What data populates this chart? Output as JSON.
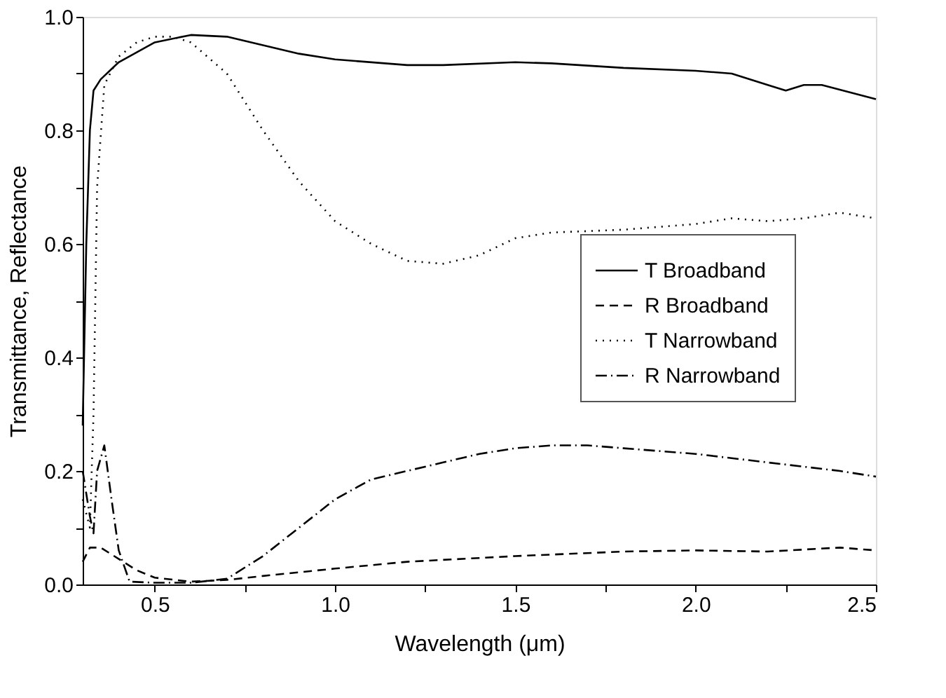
{
  "chart_data": {
    "type": "line",
    "xlabel": "Wavelength (μm)",
    "ylabel": "Transmittance, Reflectance",
    "xlim": [
      0.3,
      2.5
    ],
    "ylim": [
      0,
      1.0
    ],
    "xticks": [
      {
        "value": 0.5,
        "label": "0.5"
      },
      {
        "value": 0.75,
        "label": null
      },
      {
        "value": 1.0,
        "label": "1.0"
      },
      {
        "value": 1.25,
        "label": null
      },
      {
        "value": 1.5,
        "label": "1.5"
      },
      {
        "value": 1.75,
        "label": null
      },
      {
        "value": 2.0,
        "label": "2.0"
      },
      {
        "value": 2.25,
        "label": null
      },
      {
        "value": 2.5,
        "label": "2.5"
      }
    ],
    "yticks": [
      {
        "value": 0,
        "label": "0.0"
      },
      {
        "value": 0.1,
        "label": null
      },
      {
        "value": 0.2,
        "label": "0.2"
      },
      {
        "value": 0.3,
        "label": null
      },
      {
        "value": 0.4,
        "label": "0.4"
      },
      {
        "value": 0.5,
        "label": null
      },
      {
        "value": 0.6,
        "label": "0.6"
      },
      {
        "value": 0.7,
        "label": null
      },
      {
        "value": 0.8,
        "label": "0.8"
      },
      {
        "value": 0.9,
        "label": null
      },
      {
        "value": 1.0,
        "label": "1.0"
      }
    ],
    "grid": false,
    "legend": "right",
    "marker": "none",
    "series": [
      {
        "name": "T Broadband",
        "color": "#000000",
        "line_style": "solid",
        "x": [
          0.3,
          0.31,
          0.32,
          0.33,
          0.35,
          0.4,
          0.5,
          0.6,
          0.7,
          0.8,
          0.9,
          1.0,
          1.2,
          1.3,
          1.5,
          1.6,
          1.8,
          2.0,
          2.1,
          2.2,
          2.25,
          2.3,
          2.35,
          2.5
        ],
        "values": [
          0.28,
          0.6,
          0.8,
          0.87,
          0.89,
          0.92,
          0.955,
          0.968,
          0.965,
          0.95,
          0.935,
          0.925,
          0.915,
          0.915,
          0.92,
          0.918,
          0.91,
          0.905,
          0.9,
          0.88,
          0.87,
          0.88,
          0.88,
          0.855
        ]
      },
      {
        "name": "R Broadband",
        "color": "#000000",
        "line_style": "dashed",
        "x": [
          0.3,
          0.32,
          0.35,
          0.4,
          0.45,
          0.5,
          0.6,
          0.7,
          0.8,
          1.0,
          1.2,
          1.5,
          1.8,
          2.0,
          2.2,
          2.4,
          2.5
        ],
        "values": [
          0.04,
          0.065,
          0.065,
          0.045,
          0.025,
          0.012,
          0.005,
          0.008,
          0.015,
          0.028,
          0.04,
          0.05,
          0.058,
          0.06,
          0.058,
          0.065,
          0.06
        ]
      },
      {
        "name": "T Narrowband",
        "color": "#000000",
        "line_style": "dotted",
        "x": [
          0.3,
          0.32,
          0.33,
          0.34,
          0.36,
          0.4,
          0.45,
          0.5,
          0.55,
          0.6,
          0.7,
          0.8,
          0.9,
          1.0,
          1.1,
          1.2,
          1.3,
          1.4,
          1.5,
          1.6,
          1.8,
          2.0,
          2.1,
          2.2,
          2.3,
          2.4,
          2.5
        ],
        "values": [
          0.15,
          0.1,
          0.3,
          0.7,
          0.88,
          0.93,
          0.955,
          0.965,
          0.965,
          0.955,
          0.9,
          0.8,
          0.71,
          0.64,
          0.6,
          0.57,
          0.565,
          0.58,
          0.61,
          0.62,
          0.625,
          0.635,
          0.645,
          0.64,
          0.645,
          0.655,
          0.645
        ]
      },
      {
        "name": "R Narrowband",
        "color": "#000000",
        "line_style": "dashdot",
        "x": [
          0.3,
          0.32,
          0.33,
          0.34,
          0.36,
          0.38,
          0.4,
          0.43,
          0.5,
          0.6,
          0.7,
          0.8,
          0.9,
          1.0,
          1.1,
          1.2,
          1.3,
          1.4,
          1.5,
          1.6,
          1.7,
          1.8,
          2.0,
          2.2,
          2.4,
          2.5
        ],
        "values": [
          0.2,
          0.12,
          0.09,
          0.2,
          0.245,
          0.15,
          0.06,
          0.005,
          0.003,
          0.003,
          0.01,
          0.05,
          0.1,
          0.15,
          0.185,
          0.2,
          0.215,
          0.23,
          0.24,
          0.245,
          0.245,
          0.24,
          0.23,
          0.215,
          0.2,
          0.19
        ]
      }
    ]
  }
}
